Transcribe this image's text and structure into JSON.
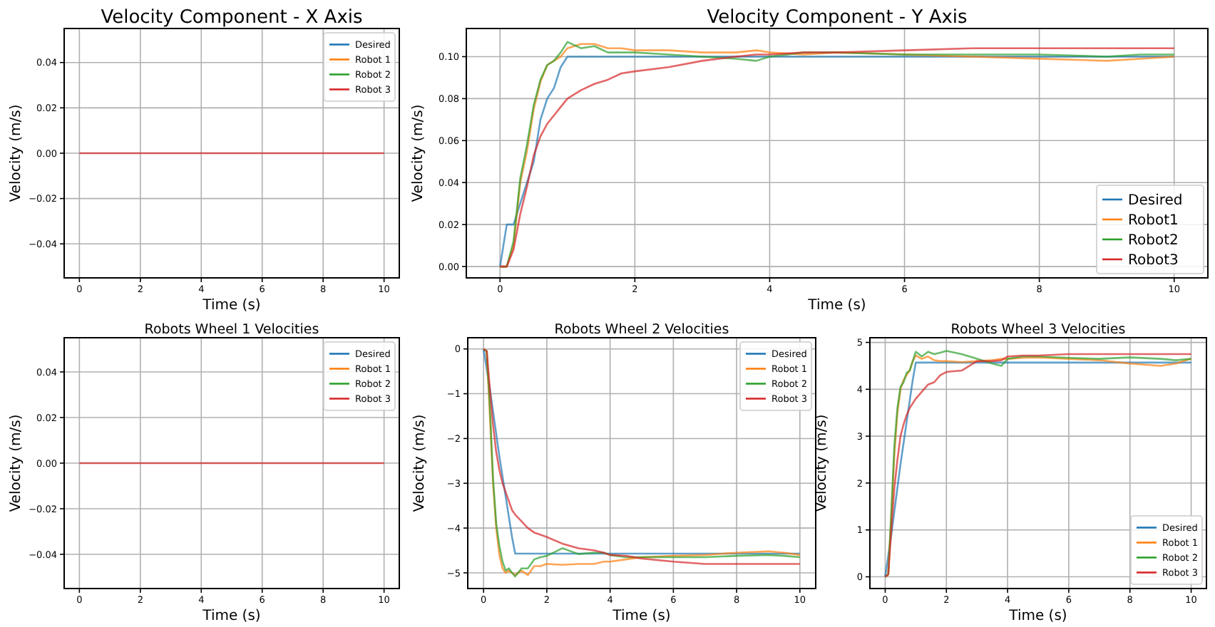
{
  "chart_data": [
    {
      "type": "line",
      "title": "Velocity Component - X Axis",
      "xlabel": "Time (s)",
      "ylabel": "Velocity (m/s)",
      "x": [
        0,
        10
      ],
      "xlim": [
        -0.5,
        10.5
      ],
      "xticks": [
        0,
        2,
        4,
        6,
        8,
        10
      ],
      "ylim": [
        -0.055,
        0.055
      ],
      "yticks": [
        {
          "value": -0.04,
          "label": "−0.04"
        },
        {
          "value": -0.02,
          "label": "−0.02"
        },
        {
          "value": 0,
          "label": "0.00"
        },
        {
          "value": 0.02,
          "label": "0.02"
        },
        {
          "value": 0.04,
          "label": "0.04"
        }
      ],
      "grid": true,
      "legend": "top right",
      "series": [
        {
          "name": "Desired",
          "color": "#1f77b4",
          "values": [
            null,
            null
          ]
        },
        {
          "name": "Robot 1",
          "color": "#ff7f0e",
          "values": [
            null,
            null
          ]
        },
        {
          "name": "Robot 2",
          "color": "#2ca02c",
          "values": [
            null,
            null
          ]
        },
        {
          "name": "Robot 3",
          "color": "#d62728",
          "values": [
            0,
            0
          ]
        }
      ]
    },
    {
      "type": "line",
      "title": "Velocity Component - Y Axis",
      "xlabel": "Time (s)",
      "ylabel": "Velocity (m/s)",
      "x": [
        0,
        0.1,
        0.2,
        0.3,
        0.4,
        0.5,
        0.6,
        0.7,
        0.8,
        0.9,
        1.0,
        1.2,
        1.4,
        1.6,
        1.8,
        2.0,
        2.5,
        3.0,
        3.5,
        3.8,
        4.0,
        4.5,
        5,
        6,
        7,
        8,
        9,
        9.5,
        10
      ],
      "xlim": [
        -0.5,
        10.5
      ],
      "xticks": [
        0,
        2,
        4,
        6,
        8,
        10
      ],
      "ylim": [
        -0.0054,
        0.1134
      ],
      "yticks": [
        {
          "value": 0,
          "label": "0.00"
        },
        {
          "value": 0.02,
          "label": "0.02"
        },
        {
          "value": 0.04,
          "label": "0.04"
        },
        {
          "value": 0.06,
          "label": "0.06"
        },
        {
          "value": 0.08,
          "label": "0.08"
        },
        {
          "value": 0.1,
          "label": "0.10"
        }
      ],
      "grid": true,
      "legend": "bottom right",
      "series": [
        {
          "name": "Desired",
          "color": "#1f77b4",
          "values": [
            0,
            0.02,
            0.02,
            0.03,
            0.04,
            0.05,
            0.07,
            0.08,
            0.085,
            0.095,
            0.1,
            0.1,
            0.1,
            0.1,
            0.1,
            0.1,
            0.1,
            0.1,
            0.1,
            0.1,
            0.1,
            0.1,
            0.1,
            0.1,
            0.1,
            0.1,
            0.1,
            0.1,
            0.1
          ]
        },
        {
          "name": "Robot1",
          "color": "#ff7f0e",
          "values": [
            0,
            0,
            0.01,
            0.04,
            0.055,
            0.075,
            0.088,
            0.096,
            0.098,
            0.1,
            0.104,
            0.106,
            0.106,
            0.104,
            0.104,
            0.103,
            0.103,
            0.102,
            0.102,
            0.103,
            0.102,
            0.101,
            0.102,
            0.101,
            0.1,
            0.099,
            0.098,
            0.099,
            0.1
          ]
        },
        {
          "name": "Robot2",
          "color": "#2ca02c",
          "values": [
            0,
            0,
            0.012,
            0.042,
            0.058,
            0.077,
            0.089,
            0.096,
            0.098,
            0.102,
            0.107,
            0.104,
            0.105,
            0.102,
            0.102,
            0.102,
            0.101,
            0.1,
            0.099,
            0.098,
            0.1,
            0.102,
            0.102,
            0.101,
            0.101,
            0.101,
            0.1,
            0.101,
            0.101
          ]
        },
        {
          "name": "Robot3",
          "color": "#d62728",
          "values": [
            0,
            0,
            0.008,
            0.025,
            0.038,
            0.053,
            0.062,
            0.068,
            0.072,
            0.076,
            0.08,
            0.084,
            0.087,
            0.089,
            0.092,
            0.093,
            0.095,
            0.098,
            0.1,
            0.101,
            0.101,
            0.102,
            0.102,
            0.103,
            0.104,
            0.104,
            0.104,
            0.104,
            0.104
          ]
        }
      ]
    },
    {
      "type": "line",
      "title": "Robots Wheel 1 Velocities",
      "xlabel": "Time (s)",
      "ylabel": "Velocity (m/s)",
      "x": [
        0,
        10
      ],
      "xlim": [
        -0.5,
        10.5
      ],
      "xticks": [
        0,
        2,
        4,
        6,
        8,
        10
      ],
      "ylim": [
        -0.055,
        0.055
      ],
      "yticks": [
        {
          "value": -0.04,
          "label": "−0.04"
        },
        {
          "value": -0.02,
          "label": "−0.02"
        },
        {
          "value": 0,
          "label": "0.00"
        },
        {
          "value": 0.02,
          "label": "0.02"
        },
        {
          "value": 0.04,
          "label": "0.04"
        }
      ],
      "grid": true,
      "legend": "top right",
      "series": [
        {
          "name": "Desired",
          "color": "#1f77b4",
          "values": [
            null,
            null
          ]
        },
        {
          "name": "Robot 1",
          "color": "#ff7f0e",
          "values": [
            null,
            null
          ]
        },
        {
          "name": "Robot 2",
          "color": "#2ca02c",
          "values": [
            null,
            null
          ]
        },
        {
          "name": "Robot 3",
          "color": "#d62728",
          "values": [
            0,
            0
          ]
        }
      ]
    },
    {
      "type": "line",
      "title": "Robots Wheel 2 Velocities",
      "xlabel": "Time (s)",
      "ylabel": "Velocity (m/s)",
      "x": [
        0,
        0.1,
        0.2,
        0.3,
        0.4,
        0.5,
        0.6,
        0.7,
        0.8,
        0.9,
        1.0,
        1.2,
        1.4,
        1.6,
        1.8,
        2.0,
        2.5,
        3.0,
        3.5,
        3.8,
        4.0,
        4.5,
        5,
        6,
        7,
        8,
        9,
        9.5,
        10
      ],
      "xlim": [
        -0.5,
        10.5
      ],
      "xticks": [
        0,
        2,
        4,
        6,
        8,
        10
      ],
      "ylim": [
        -5.35,
        0.25
      ],
      "yticks": [
        {
          "value": -5,
          "label": "−5"
        },
        {
          "value": -4,
          "label": "−4"
        },
        {
          "value": -3,
          "label": "−3"
        },
        {
          "value": -2,
          "label": "−2"
        },
        {
          "value": -1,
          "label": "−1"
        },
        0
      ],
      "grid": true,
      "legend": "top right",
      "series": [
        {
          "name": "Desired",
          "color": "#1f77b4",
          "values": [
            0,
            -0.45,
            -0.9,
            -1.4,
            -1.9,
            -2.4,
            -2.85,
            -3.3,
            -3.75,
            -4.2,
            -4.57,
            -4.57,
            -4.57,
            -4.57,
            -4.57,
            -4.57,
            -4.57,
            -4.57,
            -4.57,
            -4.57,
            -4.57,
            -4.57,
            -4.57,
            -4.57,
            -4.57,
            -4.57,
            -4.57,
            -4.57,
            -4.57
          ]
        },
        {
          "name": "Robot 1",
          "color": "#ff7f0e",
          "values": [
            0,
            -0.05,
            -1.5,
            -3,
            -4,
            -4.6,
            -4.9,
            -5,
            -4.95,
            -5.0,
            -5.05,
            -4.95,
            -5.05,
            -4.85,
            -4.85,
            -4.8,
            -4.82,
            -4.8,
            -4.8,
            -4.75,
            -4.75,
            -4.7,
            -4.65,
            -4.62,
            -4.6,
            -4.55,
            -4.52,
            -4.55,
            -4.6
          ]
        },
        {
          "name": "Robot 2",
          "color": "#2ca02c",
          "values": [
            0,
            -0.05,
            -1.3,
            -2.9,
            -3.9,
            -4.4,
            -4.75,
            -4.95,
            -4.9,
            -5.0,
            -5.08,
            -4.9,
            -4.9,
            -4.7,
            -4.65,
            -4.62,
            -4.45,
            -4.58,
            -4.55,
            -4.55,
            -4.6,
            -4.65,
            -4.65,
            -4.65,
            -4.65,
            -4.62,
            -4.6,
            -4.62,
            -4.65
          ]
        },
        {
          "name": "Robot 3",
          "color": "#d62728",
          "values": [
            0,
            -0.05,
            -0.9,
            -1.7,
            -2.3,
            -2.7,
            -3.0,
            -3.2,
            -3.4,
            -3.6,
            -3.7,
            -3.85,
            -4.0,
            -4.1,
            -4.15,
            -4.2,
            -4.35,
            -4.45,
            -4.5,
            -4.55,
            -4.6,
            -4.62,
            -4.68,
            -4.75,
            -4.8,
            -4.8,
            -4.8,
            -4.8,
            -4.8
          ]
        }
      ]
    },
    {
      "type": "line",
      "title": "Robots Wheel 3 Velocities",
      "xlabel": "Time (s)",
      "ylabel": "Velocity (m/s)",
      "x": [
        0,
        0.1,
        0.2,
        0.3,
        0.4,
        0.5,
        0.6,
        0.7,
        0.8,
        0.9,
        1.0,
        1.2,
        1.4,
        1.6,
        1.8,
        2.0,
        2.5,
        3.0,
        3.5,
        3.8,
        4.0,
        4.5,
        5,
        6,
        7,
        8,
        9,
        9.5,
        10
      ],
      "xlim": [
        -0.5,
        10.5
      ],
      "xticks": [
        0,
        2,
        4,
        6,
        8,
        10
      ],
      "ylim": [
        -0.25,
        5.1
      ],
      "yticks": [
        0,
        1,
        2,
        3,
        4,
        5
      ],
      "grid": true,
      "legend": "bottom right",
      "series": [
        {
          "name": "Desired",
          "color": "#1f77b4",
          "values": [
            0,
            0.45,
            0.9,
            1.4,
            1.9,
            2.4,
            2.85,
            3.3,
            3.75,
            4.2,
            4.57,
            4.57,
            4.57,
            4.57,
            4.57,
            4.57,
            4.57,
            4.57,
            4.57,
            4.57,
            4.57,
            4.57,
            4.57,
            4.57,
            4.57,
            4.57,
            4.57,
            4.57,
            4.57
          ]
        },
        {
          "name": "Robot 1",
          "color": "#ff7f0e",
          "values": [
            0,
            0.05,
            1.3,
            2.6,
            3.5,
            4.0,
            4.2,
            4.3,
            4.4,
            4.6,
            4.72,
            4.65,
            4.7,
            4.62,
            4.6,
            4.6,
            4.58,
            4.6,
            4.62,
            4.65,
            4.65,
            4.67,
            4.68,
            4.65,
            4.62,
            4.55,
            4.5,
            4.55,
            4.65
          ]
        },
        {
          "name": "Robot 2",
          "color": "#2ca02c",
          "values": [
            0,
            0.05,
            1.4,
            2.8,
            3.6,
            4.05,
            4.15,
            4.35,
            4.4,
            4.6,
            4.8,
            4.7,
            4.8,
            4.75,
            4.78,
            4.82,
            4.75,
            4.65,
            4.55,
            4.5,
            4.65,
            4.7,
            4.7,
            4.67,
            4.65,
            4.68,
            4.65,
            4.62,
            4.65
          ]
        },
        {
          "name": "Robot 3",
          "color": "#d62728",
          "values": [
            0,
            0.05,
            1.0,
            1.9,
            2.5,
            3.0,
            3.25,
            3.45,
            3.6,
            3.7,
            3.8,
            3.95,
            4.1,
            4.15,
            4.3,
            4.37,
            4.4,
            4.6,
            4.6,
            4.62,
            4.7,
            4.72,
            4.72,
            4.75,
            4.75,
            4.75,
            4.75,
            4.75,
            4.75
          ]
        }
      ]
    }
  ]
}
